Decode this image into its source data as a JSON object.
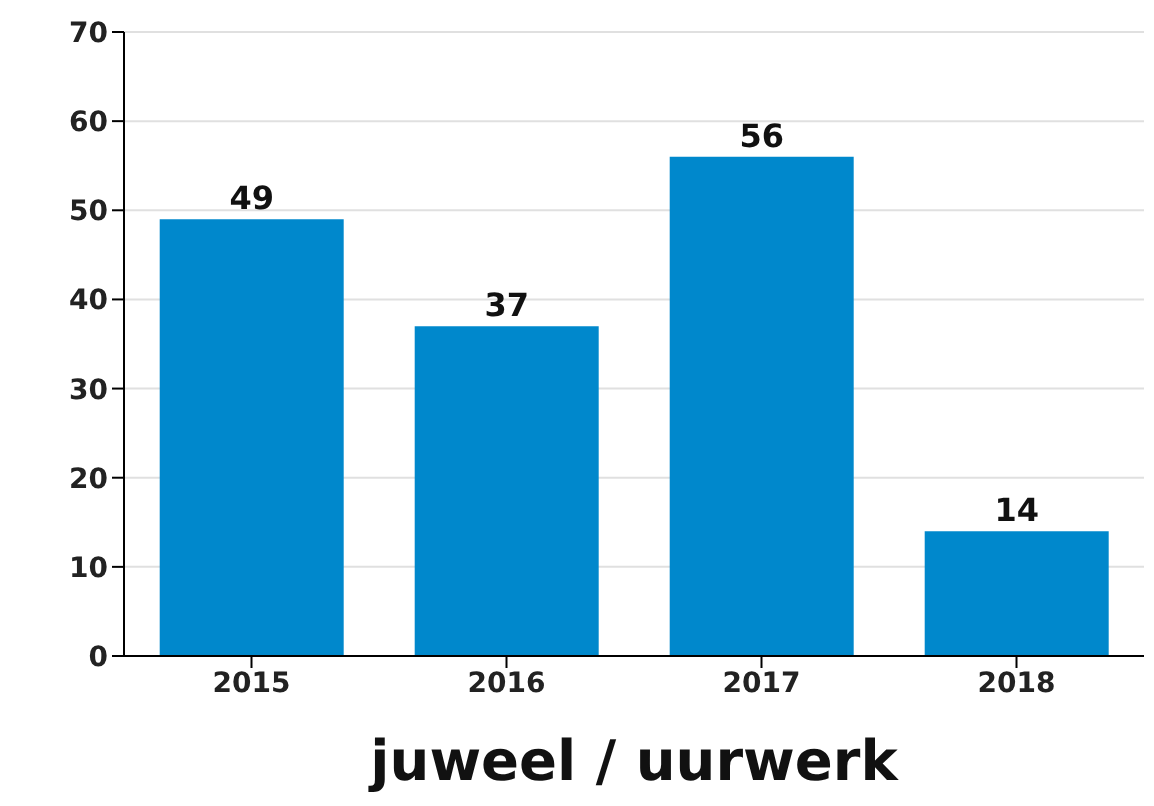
{
  "chart_data": {
    "type": "bar",
    "xlabel": "juweel / uurwerk",
    "categories": [
      "2015",
      "2016",
      "2017",
      "2018"
    ],
    "values": [
      49,
      37,
      56,
      14
    ],
    "color": "#0088cc",
    "ylim": [
      0,
      70
    ],
    "yticks": [
      0,
      10,
      20,
      30,
      40,
      50,
      60,
      70
    ],
    "grid": "y",
    "data_labels": true
  }
}
